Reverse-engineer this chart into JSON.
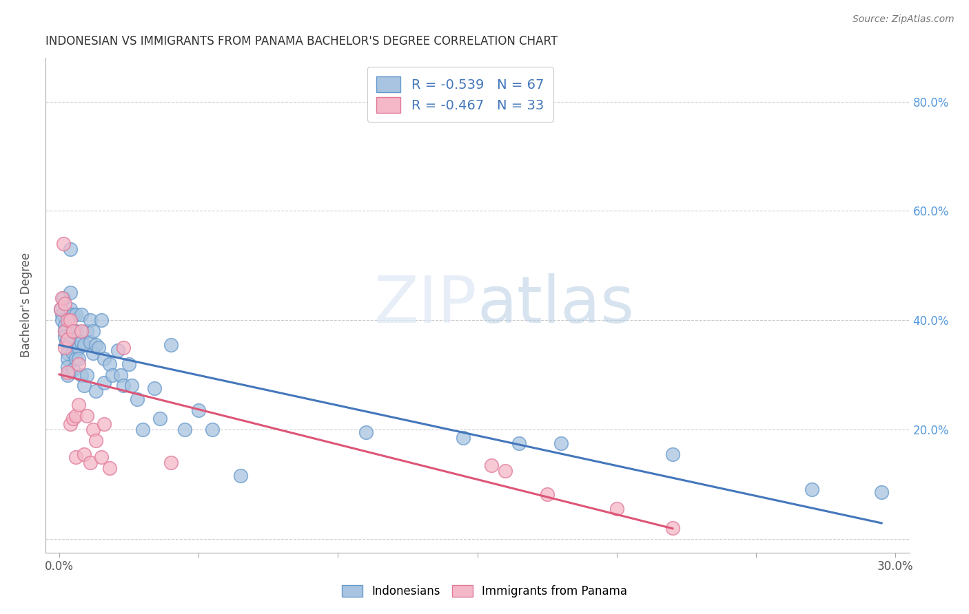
{
  "title": "INDONESIAN VS IMMIGRANTS FROM PANAMA BACHELOR'S DEGREE CORRELATION CHART",
  "source": "Source: ZipAtlas.com",
  "ylabel": "Bachelor's Degree",
  "legend_r_n": [
    {
      "r": "R = -0.539",
      "n": "N = 67",
      "color": "#a8c4e0"
    },
    {
      "r": "R = -0.467",
      "n": "N = 33",
      "color": "#f4a8b8"
    }
  ],
  "legend_labels": [
    "Indonesians",
    "Immigrants from Panama"
  ],
  "blue_fill": "#a8c4e0",
  "pink_fill": "#f4b8c8",
  "blue_edge": "#6699cc",
  "pink_edge": "#e07898",
  "blue_line": "#4477bb",
  "pink_line": "#dd5577",
  "right_tick_color": "#5599dd",
  "indonesians_x": [
    0.0005,
    0.001,
    0.001,
    0.0015,
    0.002,
    0.002,
    0.002,
    0.0025,
    0.003,
    0.003,
    0.003,
    0.003,
    0.003,
    0.004,
    0.004,
    0.004,
    0.004,
    0.005,
    0.005,
    0.005,
    0.005,
    0.006,
    0.006,
    0.006,
    0.007,
    0.007,
    0.007,
    0.008,
    0.008,
    0.008,
    0.009,
    0.009,
    0.01,
    0.01,
    0.011,
    0.011,
    0.012,
    0.012,
    0.013,
    0.013,
    0.014,
    0.015,
    0.016,
    0.016,
    0.018,
    0.019,
    0.021,
    0.022,
    0.023,
    0.025,
    0.026,
    0.028,
    0.03,
    0.034,
    0.036,
    0.04,
    0.045,
    0.05,
    0.055,
    0.065,
    0.11,
    0.145,
    0.165,
    0.18,
    0.22,
    0.27,
    0.295
  ],
  "indonesians_y": [
    0.42,
    0.41,
    0.4,
    0.44,
    0.39,
    0.38,
    0.37,
    0.36,
    0.35,
    0.34,
    0.33,
    0.315,
    0.3,
    0.53,
    0.45,
    0.42,
    0.37,
    0.41,
    0.38,
    0.34,
    0.31,
    0.41,
    0.38,
    0.33,
    0.37,
    0.35,
    0.33,
    0.41,
    0.36,
    0.3,
    0.355,
    0.28,
    0.38,
    0.3,
    0.4,
    0.36,
    0.38,
    0.34,
    0.355,
    0.27,
    0.35,
    0.4,
    0.33,
    0.285,
    0.32,
    0.3,
    0.345,
    0.3,
    0.28,
    0.32,
    0.28,
    0.255,
    0.2,
    0.275,
    0.22,
    0.355,
    0.2,
    0.235,
    0.2,
    0.115,
    0.195,
    0.185,
    0.175,
    0.175,
    0.155,
    0.09,
    0.085
  ],
  "panama_x": [
    0.0005,
    0.001,
    0.0015,
    0.002,
    0.002,
    0.002,
    0.003,
    0.003,
    0.003,
    0.004,
    0.004,
    0.005,
    0.005,
    0.006,
    0.006,
    0.007,
    0.007,
    0.008,
    0.009,
    0.01,
    0.011,
    0.012,
    0.013,
    0.015,
    0.016,
    0.018,
    0.023,
    0.04,
    0.155,
    0.16,
    0.175,
    0.2,
    0.22
  ],
  "panama_y": [
    0.42,
    0.44,
    0.54,
    0.43,
    0.38,
    0.35,
    0.4,
    0.365,
    0.305,
    0.4,
    0.21,
    0.38,
    0.22,
    0.225,
    0.15,
    0.32,
    0.245,
    0.38,
    0.155,
    0.225,
    0.14,
    0.2,
    0.18,
    0.15,
    0.21,
    0.13,
    0.35,
    0.14,
    0.135,
    0.125,
    0.082,
    0.055,
    0.02
  ],
  "xlim": [
    -0.005,
    0.305
  ],
  "ylim": [
    -0.025,
    0.88
  ],
  "x_ticks": [
    0.0,
    0.05,
    0.1,
    0.15,
    0.2,
    0.25,
    0.3
  ],
  "y_ticks": [
    0.0,
    0.2,
    0.4,
    0.6,
    0.8
  ],
  "right_y_labels": [
    "",
    "20.0%",
    "40.0%",
    "60.0%",
    "80.0%"
  ]
}
